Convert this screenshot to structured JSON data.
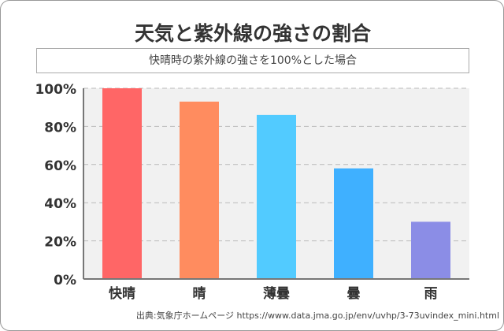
{
  "chart_data": {
    "type": "bar",
    "title": "天気と紫外線の強さの割合",
    "subtitle": "快晴時の紫外線の強さを100%とした場合",
    "categories": [
      "快晴",
      "晴",
      "薄曇",
      "曇",
      "雨"
    ],
    "values": [
      100,
      93,
      86,
      58,
      30
    ],
    "colors": [
      "#ff6666",
      "#ff8c5f",
      "#52cbff",
      "#3fb0ff",
      "#8b8de6"
    ],
    "yticks": [
      "0%",
      "20%",
      "40%",
      "60%",
      "80%",
      "100%"
    ],
    "ylim": [
      0,
      100
    ],
    "grid": true,
    "source": "出典:気象庁ホームページ https://www.data.jma.go.jp/env/uvhp/3-73uvindex_mini.html"
  }
}
